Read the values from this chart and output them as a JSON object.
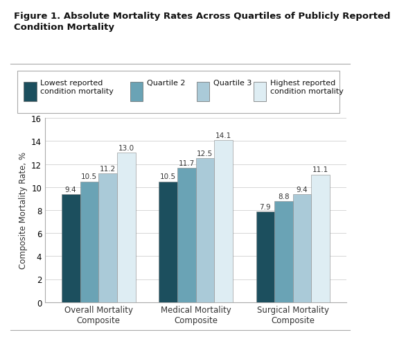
{
  "title_line1": "Figure 1. Absolute Mortality Rates Across Quartiles of Publicly Reported",
  "title_line2": "Condition Mortality",
  "categories": [
    "Overall Mortality\nComposite",
    "Medical Mortality\nComposite",
    "Surgical Mortality\nComposite"
  ],
  "series": [
    {
      "label": "Lowest reported\ncondition mortality",
      "values": [
        9.4,
        10.5,
        7.9
      ],
      "color": "#1c4f5e"
    },
    {
      "label": "Quartile 2",
      "values": [
        10.5,
        11.7,
        8.8
      ],
      "color": "#6aa3b5"
    },
    {
      "label": "Quartile 3",
      "values": [
        11.2,
        12.5,
        9.4
      ],
      "color": "#aacad8"
    },
    {
      "label": "Highest reported\ncondition mortality",
      "values": [
        13.0,
        14.1,
        11.1
      ],
      "color": "#deedf3"
    }
  ],
  "ylabel": "Composite Mortality Rate, %",
  "ylim": [
    0,
    16
  ],
  "yticks": [
    0,
    2,
    4,
    6,
    8,
    10,
    12,
    14,
    16
  ],
  "bar_width": 0.19,
  "title_fontsize": 9.5,
  "axis_fontsize": 8.5,
  "tick_fontsize": 8.5,
  "label_fontsize": 7.5,
  "legend_fontsize": 8,
  "background_color": "#ffffff",
  "title_color": "#111111",
  "grid_color": "#d0d0d0",
  "spine_color": "#aaaaaa"
}
